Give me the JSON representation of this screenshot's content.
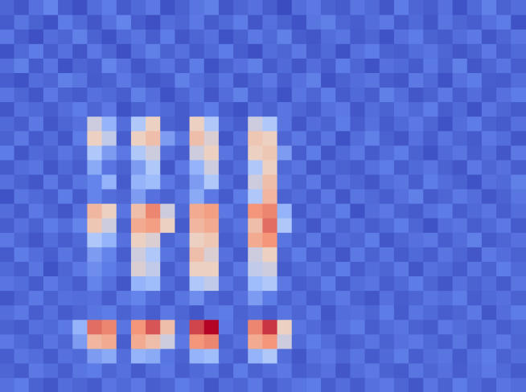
{
  "chart_data": {
    "type": "heatmap",
    "tick_labels": false,
    "cells": [
      [
        22,
        18,
        25,
        30,
        20,
        16,
        24,
        28,
        19,
        23,
        27,
        17,
        21,
        26,
        29,
        18,
        22,
        25,
        20,
        15,
        24,
        27,
        21,
        19,
        26,
        23,
        18,
        28,
        22,
        20,
        25,
        17,
        23,
        29,
        21,
        24
      ],
      [
        19,
        26,
        21,
        17,
        28,
        23,
        18,
        25,
        30,
        20,
        16,
        24,
        22,
        27,
        19,
        23,
        28,
        18,
        25,
        21,
        17,
        26,
        29,
        22,
        20,
        24,
        27,
        19,
        23,
        18,
        26,
        22,
        20,
        25,
        28,
        17
      ],
      [
        27,
        20,
        16,
        24,
        22,
        29,
        21,
        17,
        23,
        26,
        20,
        28,
        18,
        22,
        25,
        17,
        21,
        27,
        23,
        29,
        20,
        18,
        24,
        26,
        19,
        22,
        17,
        25,
        28,
        21,
        19,
        24,
        27,
        18,
        22,
        26
      ],
      [
        17,
        23,
        28,
        20,
        25,
        18,
        27,
        22,
        16,
        24,
        29,
        21,
        25,
        19,
        23,
        28,
        20,
        16,
        24,
        22,
        27,
        19,
        23,
        17,
        25,
        28,
        21,
        20,
        24,
        26,
        22,
        18,
        21,
        27,
        20,
        23
      ],
      [
        24,
        29,
        19,
        26,
        17,
        22,
        20,
        30,
        25,
        18,
        23,
        26,
        20,
        28,
        17,
        21,
        25,
        29,
        19,
        23,
        18,
        24,
        20,
        28,
        22,
        17,
        25,
        23,
        19,
        27,
        21,
        29,
        18,
        22,
        26,
        20
      ],
      [
        20,
        17,
        24,
        22,
        29,
        26,
        19,
        21,
        27,
        22,
        18,
        20,
        29,
        24,
        21,
        26,
        18,
        22,
        27,
        20,
        25,
        29,
        17,
        21,
        24,
        26,
        20,
        18,
        27,
        23,
        17,
        25,
        28,
        20,
        19,
        24
      ],
      [
        26,
        22,
        18,
        27,
        21,
        19,
        25,
        23,
        20,
        29,
        24,
        17,
        22,
        26,
        18,
        24,
        29,
        20,
        23,
        17,
        26,
        22,
        28,
        19,
        23,
        20,
        29,
        24,
        18,
        21,
        27,
        20,
        24,
        19,
        25,
        28
      ],
      [
        18,
        25,
        23,
        20,
        24,
        28,
        22,
        27,
        17,
        21,
        26,
        23,
        19,
        24,
        28,
        20,
        17,
        25,
        21,
        26,
        22,
        19,
        25,
        27,
        18,
        24,
        21,
        26,
        23,
        28,
        20,
        23,
        17,
        26,
        22,
        19
      ],
      [
        23,
        20,
        27,
        18,
        22,
        25,
        50,
        40,
        24,
        45,
        55,
        21,
        19,
        55,
        45,
        23,
        20,
        50,
        45,
        26,
        18,
        24,
        21,
        28,
        20,
        25,
        19,
        23,
        27,
        22,
        17,
        24,
        28,
        21,
        19,
        25
      ],
      [
        21,
        27,
        19,
        24,
        18,
        28,
        55,
        48,
        20,
        55,
        60,
        35,
        26,
        60,
        52,
        18,
        25,
        58,
        55,
        22,
        27,
        20,
        26,
        17,
        24,
        29,
        21,
        18,
        25,
        20,
        26,
        22,
        19,
        27,
        24,
        18
      ],
      [
        28,
        18,
        23,
        21,
        26,
        22,
        45,
        35,
        27,
        45,
        50,
        24,
        20,
        50,
        55,
        26,
        21,
        55,
        58,
        35,
        20,
        28,
        18,
        23,
        27,
        19,
        24,
        28,
        21,
        17,
        23,
        26,
        20,
        24,
        18,
        27
      ],
      [
        19,
        24,
        26,
        18,
        23,
        20,
        38,
        26,
        21,
        35,
        45,
        18,
        27,
        40,
        50,
        20,
        24,
        45,
        55,
        23,
        26,
        18,
        24,
        21,
        19,
        25,
        28,
        20,
        23,
        26,
        21,
        18,
        27,
        22,
        25,
        20
      ],
      [
        25,
        21,
        18,
        27,
        20,
        26,
        30,
        40,
        19,
        40,
        42,
        27,
        22,
        35,
        45,
        24,
        19,
        50,
        60,
        26,
        21,
        27,
        19,
        25,
        22,
        18,
        24,
        26,
        20,
        28,
        24,
        21,
        17,
        25,
        23,
        29
      ],
      [
        17,
        26,
        23,
        20,
        28,
        19,
        30,
        24,
        22,
        35,
        25,
        21,
        26,
        38,
        27,
        19,
        28,
        45,
        62,
        21,
        24,
        20,
        27,
        18,
        26,
        23,
        20,
        25,
        29,
        19,
        22,
        27,
        24,
        18,
        21,
        26
      ],
      [
        24,
        19,
        27,
        22,
        18,
        25,
        62,
        55,
        26,
        60,
        72,
        50,
        23,
        65,
        68,
        27,
        22,
        70,
        72,
        40,
        19,
        25,
        22,
        28,
        17,
        24,
        27,
        21,
        19,
        25,
        28,
        20,
        23,
        26,
        20,
        24
      ],
      [
        20,
        25,
        21,
        28,
        24,
        30,
        58,
        50,
        21,
        65,
        68,
        55,
        19,
        62,
        65,
        22,
        26,
        60,
        75,
        45,
        24,
        18,
        26,
        21,
        25,
        20,
        23,
        28,
        22,
        17,
        24,
        26,
        20,
        23,
        27,
        19
      ],
      [
        27,
        22,
        18,
        24,
        20,
        23,
        45,
        40,
        25,
        55,
        52,
        22,
        26,
        55,
        58,
        20,
        23,
        65,
        70,
        26,
        21,
        27,
        19,
        24,
        22,
        28,
        18,
        22,
        25,
        27,
        20,
        24,
        29,
        19,
        22,
        25
      ],
      [
        19,
        28,
        24,
        20,
        26,
        21,
        35,
        30,
        20,
        50,
        45,
        26,
        21,
        60,
        52,
        25,
        19,
        50,
        55,
        22,
        28,
        20,
        25,
        18,
        27,
        21,
        26,
        19,
        23,
        20,
        26,
        22,
        18,
        27,
        24,
        21
      ],
      [
        23,
        20,
        26,
        17,
        22,
        27,
        32,
        28,
        24,
        52,
        48,
        20,
        25,
        55,
        55,
        21,
        27,
        48,
        50,
        19,
        23,
        26,
        21,
        28,
        20,
        24,
        22,
        27,
        18,
        25,
        23,
        19,
        26,
        21,
        28,
        23
      ],
      [
        26,
        24,
        19,
        27,
        23,
        20,
        30,
        25,
        18,
        40,
        42,
        24,
        20,
        45,
        48,
        26,
        22,
        42,
        45,
        27,
        20,
        22,
        28,
        19,
        24,
        26,
        20,
        23,
        28,
        22,
        18,
        25,
        21,
        24,
        19,
        26
      ],
      [
        18,
        22,
        27,
        21,
        25,
        24,
        25,
        20,
        27,
        30,
        24,
        19,
        26,
        32,
        23,
        20,
        25,
        35,
        28,
        21,
        25,
        19,
        23,
        27,
        21,
        18,
        25,
        20,
        22,
        26,
        24,
        28,
        20,
        23,
        25,
        21
      ],
      [
        24,
        27,
        20,
        25,
        19,
        22,
        26,
        28,
        21,
        25,
        20,
        27,
        22,
        18,
        26,
        28,
        21,
        24,
        20,
        26,
        22,
        27,
        18,
        24,
        25,
        22,
        28,
        19,
        26,
        23,
        20,
        22,
        27,
        18,
        24,
        28
      ],
      [
        21,
        19,
        25,
        23,
        27,
        40,
        75,
        72,
        26,
        70,
        78,
        60,
        24,
        80,
        88,
        27,
        22,
        72,
        82,
        55,
        26,
        23,
        20,
        25,
        28,
        20,
        24,
        26,
        21,
        19,
        27,
        24,
        22,
        25,
        20,
        23
      ],
      [
        27,
        23,
        20,
        26,
        22,
        35,
        62,
        65,
        20,
        65,
        60,
        50,
        27,
        70,
        72,
        21,
        25,
        65,
        70,
        50,
        23,
        28,
        24,
        19,
        22,
        26,
        21,
        25,
        27,
        23,
        20,
        26,
        19,
        24,
        27,
        22
      ],
      [
        20,
        26,
        24,
        19,
        25,
        23,
        35,
        38,
        24,
        40,
        38,
        26,
        21,
        40,
        42,
        24,
        20,
        40,
        45,
        24,
        18,
        25,
        27,
        22,
        26,
        19,
        23,
        28,
        20,
        24,
        26,
        19,
        25,
        28,
        21,
        24
      ],
      [
        22,
        19,
        27,
        24,
        20,
        26,
        28,
        22,
        25,
        19,
        24,
        27,
        20,
        23,
        26,
        19,
        28,
        21,
        24,
        27,
        20,
        22,
        25,
        18,
        24,
        27,
        21,
        19,
        26,
        22,
        25,
        20,
        24,
        27,
        23,
        19
      ],
      [
        25,
        28,
        21,
        18,
        24,
        22,
        19,
        26,
        23,
        27,
        20,
        22,
        28,
        25,
        18,
        24,
        22,
        27,
        19,
        23,
        26,
        28,
        20,
        24,
        19,
        25,
        27,
        22,
        18,
        26,
        21,
        28,
        23,
        20,
        26,
        24
      ]
    ]
  }
}
